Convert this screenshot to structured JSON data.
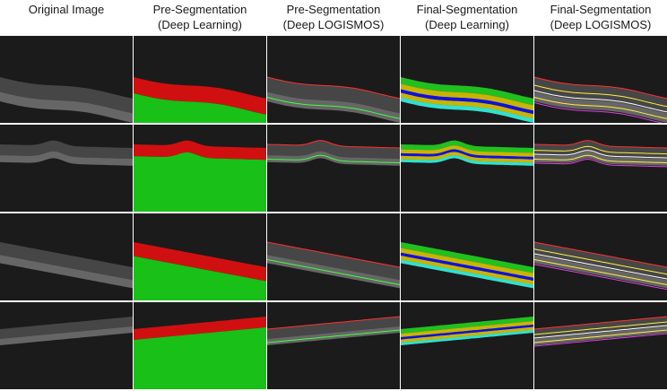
{
  "columns": [
    {
      "line1": "Original Image",
      "line2": ""
    },
    {
      "line1": "Pre-Segmentation",
      "line2": "(Deep Learning)"
    },
    {
      "line1": "Pre-Segmentation",
      "line2": "(Deep LOGISMOS)"
    },
    {
      "line1": "Final-Segmentation",
      "line2": "(Deep Learning)"
    },
    {
      "line1": "Final-Segmentation",
      "line2": "(Deep LOGISMOS)"
    }
  ],
  "rows": 4,
  "colors": {
    "background": "#1b1b1b",
    "retina_red": "#d01010",
    "below_green": "#18c018",
    "outline_red": "#ff3030",
    "outline_green": "#40ff40",
    "layer_blue": "#1010e0",
    "layer_yellow": "#c8b400",
    "layer_cyan": "#30e0d0",
    "layer_green": "#20c020",
    "line_yellow": "#ffee40",
    "line_magenta": "#e040e0"
  }
}
